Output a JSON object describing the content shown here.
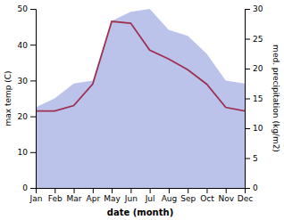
{
  "chart_data": {
    "type": "line",
    "categories": [
      "Jan",
      "Feb",
      "Mar",
      "Apr",
      "May",
      "Jun",
      "Jul",
      "Aug",
      "Sep",
      "Oct",
      "Nov",
      "Dec"
    ],
    "series": [
      {
        "type": "area",
        "color": "#b0b8e8",
        "axis": "y2",
        "values": [
          13.5,
          15.0,
          17.5,
          18.0,
          28.0,
          29.5,
          30.0,
          26.5,
          25.5,
          22.5,
          18.0,
          17.5
        ]
      },
      {
        "type": "line",
        "color": "#9e3050",
        "values": [
          21.5,
          21.5,
          23.0,
          29.0,
          46.5,
          46.0,
          38.5,
          36.0,
          33.0,
          29.0,
          22.5,
          21.5
        ]
      }
    ],
    "ylim": [
      0,
      50
    ],
    "yticks": [
      0,
      10,
      20,
      30,
      40,
      50
    ],
    "y2lim": [
      0,
      30
    ],
    "y2ticks": [
      0,
      5,
      10,
      15,
      20,
      25,
      30
    ],
    "xlabel": "date (month)",
    "ylabel": "max temp (C)",
    "y2label": "med. precipitation (kg/m2)"
  }
}
